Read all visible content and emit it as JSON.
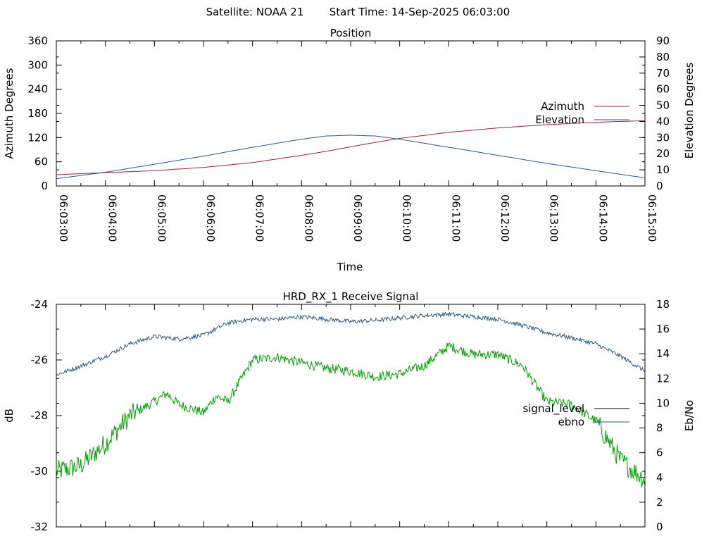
{
  "header": {
    "satellite": "Satellite: NOAA 21",
    "start_time": "Start Time: 14-Sep-2025 06:03:00"
  },
  "chart_data": [
    {
      "type": "line",
      "title": "Position",
      "xlabel": "Time",
      "ylabel": "Azimuth Degrees",
      "y2label": "Elevation Degrees",
      "ylim": [
        0,
        360
      ],
      "yticks": [
        0,
        60,
        120,
        180,
        240,
        300,
        360
      ],
      "y2lim": [
        0,
        90
      ],
      "y2ticks": [
        0,
        10,
        20,
        30,
        40,
        50,
        60,
        70,
        80,
        90
      ],
      "xlim": [
        "06:03:00",
        "06:15:00"
      ],
      "xticks": [
        "06:03:00",
        "06:04:00",
        "06:05:00",
        "06:06:00",
        "06:07:00",
        "06:08:00",
        "06:09:00",
        "06:10:00",
        "06:11:00",
        "06:12:00",
        "06:13:00",
        "06:14:00",
        "06:15:00"
      ],
      "legend": "right",
      "grid": false,
      "series": [
        {
          "name": "Azimuth",
          "axis": "left",
          "color": "#a0203a",
          "x": [
            "06:03:00",
            "06:04:00",
            "06:05:00",
            "06:06:00",
            "06:07:00",
            "06:08:00",
            "06:08:30",
            "06:09:00",
            "06:09:30",
            "06:10:00",
            "06:11:00",
            "06:12:00",
            "06:13:00",
            "06:14:00",
            "06:15:00"
          ],
          "y": [
            28,
            33,
            38,
            46,
            58,
            76,
            86,
            97,
            108,
            118,
            133,
            144,
            152,
            158,
            162
          ]
        },
        {
          "name": "Elevation",
          "axis": "right",
          "color": "#2a5a8c",
          "x": [
            "06:03:00",
            "06:04:00",
            "06:05:00",
            "06:06:00",
            "06:07:00",
            "06:08:00",
            "06:08:30",
            "06:09:00",
            "06:09:30",
            "06:10:00",
            "06:11:00",
            "06:12:00",
            "06:13:00",
            "06:14:00",
            "06:15:00"
          ],
          "y": [
            4.5,
            8.5,
            13.5,
            18.5,
            24,
            29,
            31,
            31.5,
            31,
            29,
            24,
            19,
            14,
            9.5,
            5
          ]
        }
      ]
    },
    {
      "type": "line",
      "title": "HRD_RX_1 Receive Signal",
      "ylabel": "dB",
      "y2label": "Eb/No",
      "ylim": [
        -32,
        -24
      ],
      "yticks": [
        -32,
        -30,
        -28,
        -26,
        -24
      ],
      "y2lim": [
        0,
        18
      ],
      "y2ticks": [
        0,
        2,
        4,
        6,
        8,
        10,
        12,
        14,
        16,
        18
      ],
      "xlim": [
        "06:03:00",
        "06:15:00"
      ],
      "legend": "right",
      "grid": false,
      "series": [
        {
          "name": "signal_level",
          "axis": "left",
          "color": "#00a000",
          "x": [
            "06:03:00",
            "06:03:30",
            "06:04:00",
            "06:04:30",
            "06:05:00",
            "06:05:15",
            "06:05:30",
            "06:06:00",
            "06:06:15",
            "06:06:30",
            "06:07:00",
            "06:07:30",
            "06:08:00",
            "06:08:30",
            "06:09:00",
            "06:09:30",
            "06:10:00",
            "06:10:30",
            "06:11:00",
            "06:11:30",
            "06:12:00",
            "06:12:30",
            "06:13:00",
            "06:13:30",
            "06:14:00",
            "06:14:30",
            "06:15:00"
          ],
          "y": [
            -30.0,
            -29.8,
            -29.0,
            -28.0,
            -27.5,
            -27.2,
            -27.6,
            -27.9,
            -27.3,
            -27.5,
            -26.0,
            -25.9,
            -26.1,
            -26.3,
            -26.4,
            -26.6,
            -26.5,
            -26.2,
            -25.5,
            -25.8,
            -25.8,
            -26.2,
            -27.5,
            -27.6,
            -28.2,
            -29.6,
            -30.3
          ]
        },
        {
          "name": "ebno",
          "axis": "right",
          "color": "#2a5a8c",
          "x": [
            "06:03:00",
            "06:03:30",
            "06:04:00",
            "06:04:30",
            "06:05:00",
            "06:05:30",
            "06:06:00",
            "06:06:30",
            "06:07:00",
            "06:07:30",
            "06:08:00",
            "06:08:30",
            "06:09:00",
            "06:09:30",
            "06:10:00",
            "06:10:30",
            "06:11:00",
            "06:11:30",
            "06:12:00",
            "06:12:30",
            "06:13:00",
            "06:13:30",
            "06:14:00",
            "06:14:30",
            "06:15:00"
          ],
          "y": [
            12.3,
            13.0,
            13.8,
            14.8,
            15.4,
            15.2,
            15.5,
            16.5,
            16.8,
            16.8,
            17.0,
            16.8,
            16.6,
            16.7,
            16.9,
            17.1,
            17.2,
            17.0,
            16.8,
            16.3,
            15.7,
            15.3,
            14.8,
            13.8,
            12.6
          ]
        }
      ]
    }
  ]
}
